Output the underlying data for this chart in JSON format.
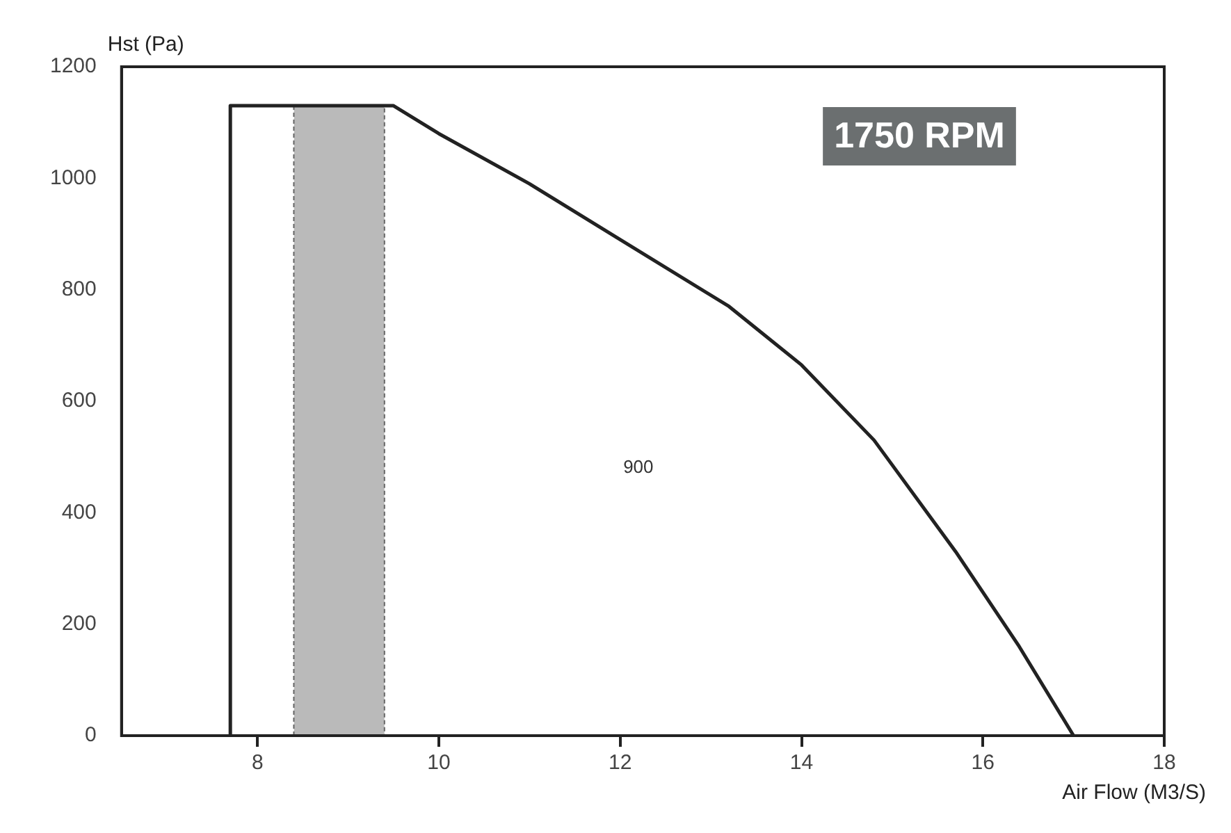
{
  "chart_data": {
    "type": "line",
    "xlabel": "Air Flow (M3/S)",
    "ylabel": "Hst (Pa)",
    "x": [
      7.7,
      7.7,
      9.5,
      10,
      11,
      12,
      13.2,
      14,
      14.8,
      15.7,
      16.4,
      17
    ],
    "series": [
      {
        "color": "#222222",
        "values": [
          0,
          1130,
          1130,
          1080,
          990,
          890,
          770,
          665,
          530,
          330,
          160,
          0
        ]
      }
    ],
    "xlim": [
      6.5,
      18
    ],
    "xticks": [
      8,
      10,
      12,
      14,
      16,
      18
    ],
    "ylim": [
      0,
      1200
    ],
    "yticks": [
      0,
      200,
      400,
      600,
      800,
      1000,
      1200
    ],
    "bands": [
      {
        "axis": "x",
        "from": 8.4,
        "to": 9.4,
        "color": "#666666"
      }
    ],
    "annotations": [
      "1750 RPM",
      "900"
    ],
    "grid": false,
    "legend": false,
    "marker": "none",
    "line_style": "solid"
  }
}
